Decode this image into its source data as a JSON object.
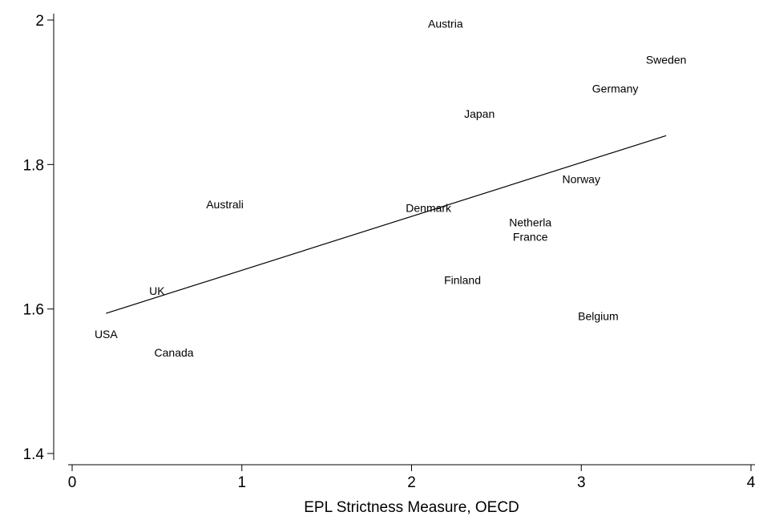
{
  "chart_data": {
    "type": "scatter",
    "title": "",
    "xlabel": "EPL Strictness Measure, OECD",
    "ylabel": "",
    "xlim": [
      0,
      4
    ],
    "ylim": [
      1.4,
      2.0
    ],
    "x_ticks": [
      0,
      1,
      2,
      3,
      4
    ],
    "y_ticks": [
      1.4,
      1.6,
      1.8,
      2
    ],
    "x_tick_labels": [
      "0",
      "1",
      "2",
      "3",
      "4"
    ],
    "y_tick_labels": [
      "1.4",
      "1.6",
      "1.8",
      "2"
    ],
    "points": [
      {
        "label": "Austria",
        "x": 2.2,
        "y": 1.995
      },
      {
        "label": "Sweden",
        "x": 3.5,
        "y": 1.945
      },
      {
        "label": "Germany",
        "x": 3.2,
        "y": 1.905
      },
      {
        "label": "Japan",
        "x": 2.4,
        "y": 1.87
      },
      {
        "label": "Norway",
        "x": 3.0,
        "y": 1.78
      },
      {
        "label": "Australi",
        "x": 0.9,
        "y": 1.745
      },
      {
        "label": "Denmark",
        "x": 2.1,
        "y": 1.74
      },
      {
        "label": "Netherla",
        "x": 2.7,
        "y": 1.72
      },
      {
        "label": "France",
        "x": 2.7,
        "y": 1.7
      },
      {
        "label": "Finland",
        "x": 2.3,
        "y": 1.64
      },
      {
        "label": "UK",
        "x": 0.5,
        "y": 1.625
      },
      {
        "label": "Belgium",
        "x": 3.1,
        "y": 1.59
      },
      {
        "label": "USA",
        "x": 0.2,
        "y": 1.565
      },
      {
        "label": "Canada",
        "x": 0.6,
        "y": 1.54
      }
    ],
    "fit_line": {
      "x": [
        0.2,
        3.5
      ],
      "y": [
        1.594,
        1.84
      ]
    },
    "grid": false,
    "legend": "none"
  }
}
